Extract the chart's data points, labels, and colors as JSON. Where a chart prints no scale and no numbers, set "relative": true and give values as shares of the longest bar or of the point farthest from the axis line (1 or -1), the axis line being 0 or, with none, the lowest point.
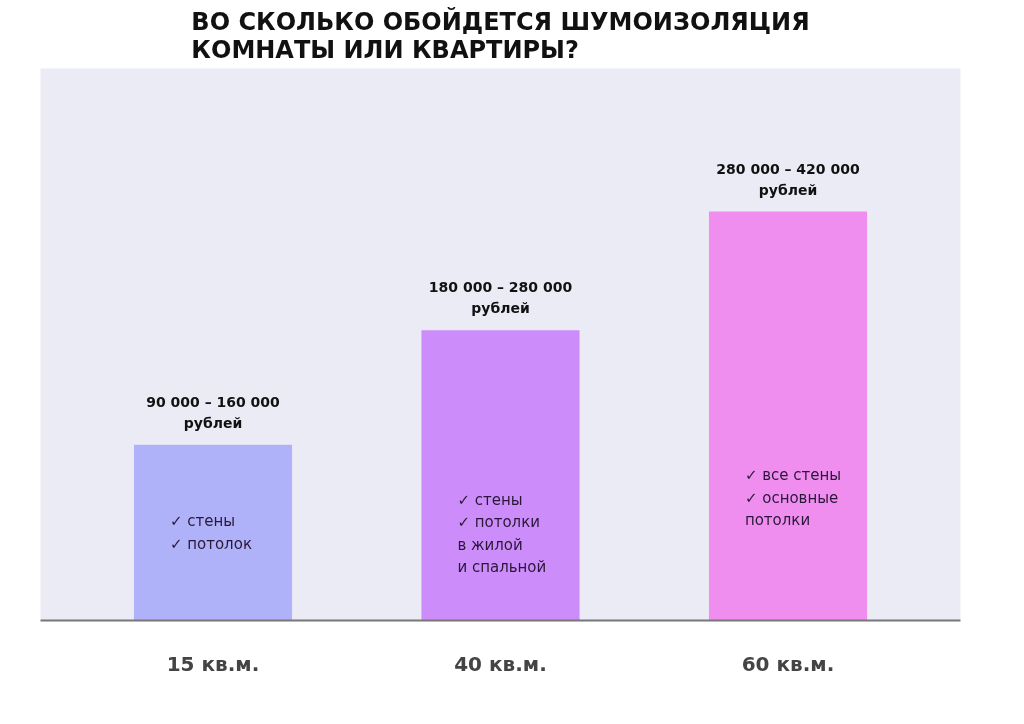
{
  "chart_data": {
    "type": "bar",
    "title": "ВО СКОЛЬКО ОБОЙДЕТСЯ ШУМОИЗОЛЯЦИЯ\nКОМНАТЫ ИЛИ КВАРТИРЫ?",
    "categories": [
      "15 кв.м.",
      "40 кв.м.",
      "60 кв.м."
    ],
    "values": [
      0.43,
      0.71,
      1
    ],
    "colors": [
      "#b0b2f9",
      "#cc8dfb",
      "#f08ef0"
    ],
    "relative": true,
    "grid": false,
    "annotations": [
      {
        "text": "90 000 – 160 000\nрублей",
        "x": "15 кв.м.",
        "y": 0.43
      },
      {
        "text": "180 000 – 280 000\nрублей",
        "x": "40 кв.м.",
        "y": 0.71
      },
      {
        "text": "280 000 – 420 000\nрублей",
        "x": "60 кв.м.",
        "y": 1
      },
      "✓ стены\n✓ потолок",
      "✓ стены\n✓ потолки\nв жилой\nи спальной",
      "✓ все стены\n✓ основные\nпотолки"
    ]
  }
}
